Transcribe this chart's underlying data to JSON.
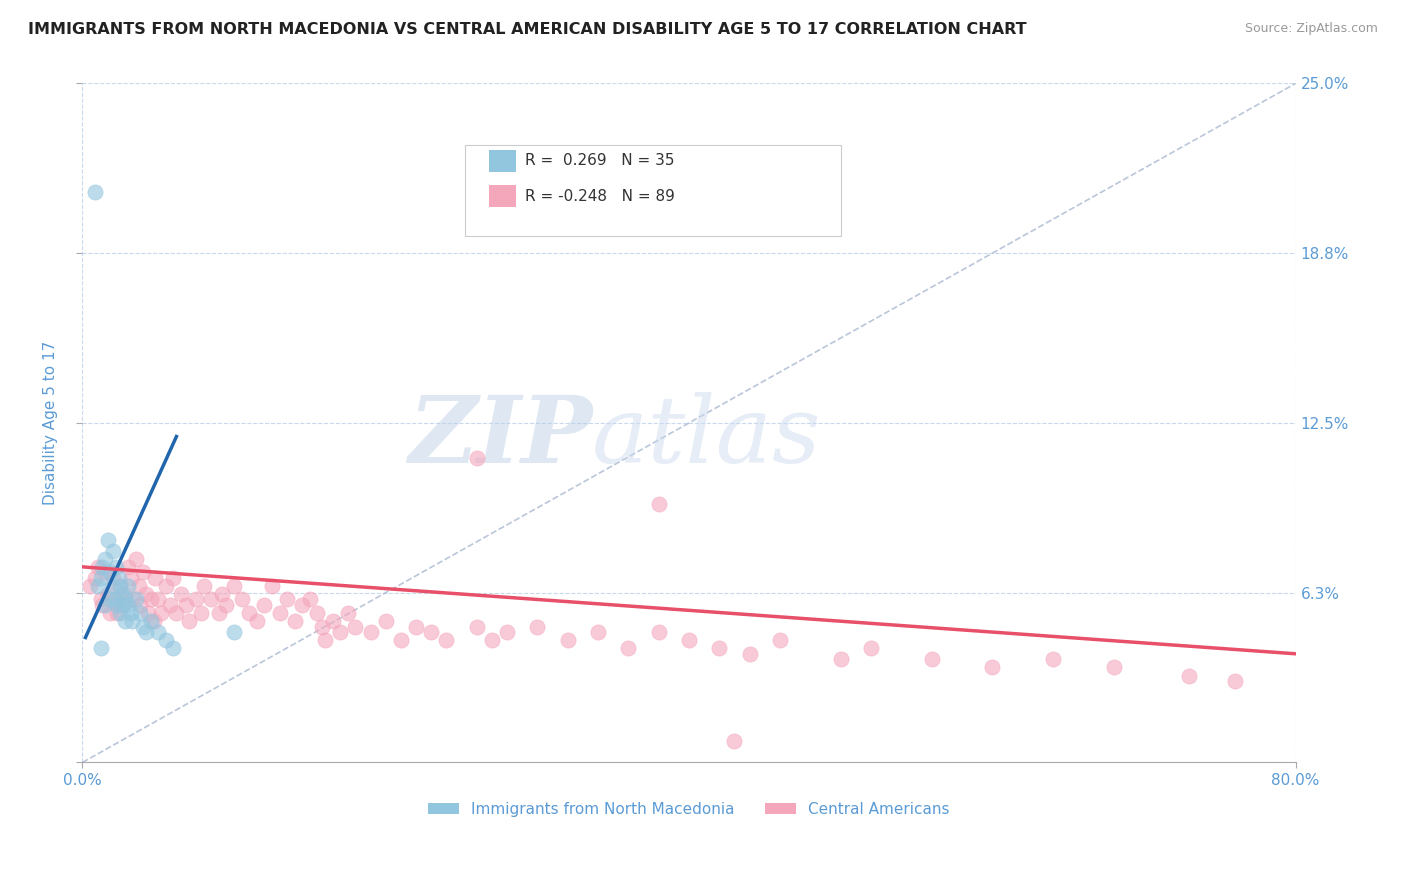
{
  "title": "IMMIGRANTS FROM NORTH MACEDONIA VS CENTRAL AMERICAN DISABILITY AGE 5 TO 17 CORRELATION CHART",
  "source": "Source: ZipAtlas.com",
  "ylabel": "Disability Age 5 to 17",
  "xlim": [
    0.0,
    0.8
  ],
  "ylim": [
    0.0,
    0.25
  ],
  "yticks": [
    0.0,
    0.0625,
    0.125,
    0.1875,
    0.25
  ],
  "ytick_labels": [
    "",
    "6.3%",
    "12.5%",
    "18.8%",
    "25.0%"
  ],
  "xtick_labels_ends": [
    "0.0%",
    "80.0%"
  ],
  "series1_color": "#92c5de",
  "series2_color": "#f4a6bb",
  "trendline1_color": "#2166ac",
  "trendline2_color": "#e8506a",
  "legend_R1": "0.269",
  "legend_N1": "35",
  "legend_R2": "-0.248",
  "legend_N2": "89",
  "legend_label1": "Immigrants from North Macedonia",
  "legend_label2": "Central Americans",
  "watermark": "ZIPatlas",
  "axis_color": "#5b9bd5",
  "grid_color": "#c8d8ee",
  "background_color": "#ffffff",
  "series1_x": [
    0.008,
    0.01,
    0.012,
    0.013,
    0.015,
    0.015,
    0.017,
    0.018,
    0.018,
    0.02,
    0.02,
    0.022,
    0.022,
    0.023,
    0.024,
    0.025,
    0.025,
    0.026,
    0.027,
    0.028,
    0.028,
    0.03,
    0.03,
    0.032,
    0.033,
    0.035,
    0.038,
    0.04,
    0.042,
    0.045,
    0.05,
    0.055,
    0.06,
    0.1,
    0.012
  ],
  "series1_y": [
    0.21,
    0.065,
    0.068,
    0.072,
    0.075,
    0.058,
    0.082,
    0.07,
    0.06,
    0.078,
    0.065,
    0.072,
    0.06,
    0.058,
    0.068,
    0.065,
    0.055,
    0.062,
    0.058,
    0.06,
    0.052,
    0.065,
    0.058,
    0.055,
    0.052,
    0.06,
    0.055,
    0.05,
    0.048,
    0.052,
    0.048,
    0.045,
    0.042,
    0.048,
    0.042
  ],
  "series2_x": [
    0.005,
    0.008,
    0.01,
    0.012,
    0.013,
    0.015,
    0.017,
    0.018,
    0.02,
    0.022,
    0.023,
    0.025,
    0.027,
    0.028,
    0.03,
    0.032,
    0.033,
    0.035,
    0.037,
    0.038,
    0.04,
    0.042,
    0.043,
    0.045,
    0.047,
    0.048,
    0.05,
    0.052,
    0.055,
    0.058,
    0.06,
    0.062,
    0.065,
    0.068,
    0.07,
    0.075,
    0.078,
    0.08,
    0.085,
    0.09,
    0.092,
    0.095,
    0.1,
    0.105,
    0.11,
    0.115,
    0.12,
    0.125,
    0.13,
    0.135,
    0.14,
    0.145,
    0.15,
    0.155,
    0.158,
    0.16,
    0.165,
    0.17,
    0.175,
    0.18,
    0.19,
    0.2,
    0.21,
    0.22,
    0.23,
    0.24,
    0.26,
    0.27,
    0.28,
    0.3,
    0.32,
    0.34,
    0.36,
    0.38,
    0.4,
    0.42,
    0.44,
    0.46,
    0.5,
    0.52,
    0.56,
    0.6,
    0.64,
    0.68,
    0.73,
    0.76,
    0.38,
    0.26,
    0.43
  ],
  "series2_y": [
    0.065,
    0.068,
    0.072,
    0.06,
    0.058,
    0.07,
    0.062,
    0.055,
    0.068,
    0.06,
    0.055,
    0.065,
    0.058,
    0.062,
    0.072,
    0.068,
    0.06,
    0.075,
    0.065,
    0.058,
    0.07,
    0.062,
    0.055,
    0.06,
    0.052,
    0.068,
    0.06,
    0.055,
    0.065,
    0.058,
    0.068,
    0.055,
    0.062,
    0.058,
    0.052,
    0.06,
    0.055,
    0.065,
    0.06,
    0.055,
    0.062,
    0.058,
    0.065,
    0.06,
    0.055,
    0.052,
    0.058,
    0.065,
    0.055,
    0.06,
    0.052,
    0.058,
    0.06,
    0.055,
    0.05,
    0.045,
    0.052,
    0.048,
    0.055,
    0.05,
    0.048,
    0.052,
    0.045,
    0.05,
    0.048,
    0.045,
    0.05,
    0.045,
    0.048,
    0.05,
    0.045,
    0.048,
    0.042,
    0.048,
    0.045,
    0.042,
    0.04,
    0.045,
    0.038,
    0.042,
    0.038,
    0.035,
    0.038,
    0.035,
    0.032,
    0.03,
    0.095,
    0.112,
    0.008
  ],
  "trendline1_x": [
    0.002,
    0.062
  ],
  "trendline1_y": [
    0.046,
    0.12
  ],
  "trendline2_x": [
    0.0,
    0.8
  ],
  "trendline2_y": [
    0.072,
    0.04
  ]
}
